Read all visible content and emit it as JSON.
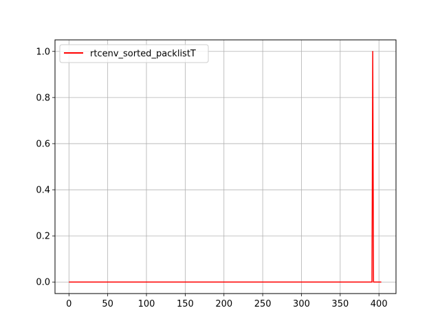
{
  "chart_data": {
    "type": "line",
    "title": "",
    "xlabel": "",
    "ylabel": "",
    "xlim": [
      -18,
      422
    ],
    "ylim": [
      -0.05,
      1.05
    ],
    "x_ticks": [
      0,
      50,
      100,
      150,
      200,
      250,
      300,
      350,
      400
    ],
    "x_tick_labels": [
      "0",
      "50",
      "100",
      "150",
      "200",
      "250",
      "300",
      "350",
      "400"
    ],
    "y_ticks": [
      0.0,
      0.2,
      0.4,
      0.6,
      0.8,
      1.0
    ],
    "y_tick_labels": [
      "0.0",
      "0.2",
      "0.4",
      "0.6",
      "0.8",
      "1.0"
    ],
    "grid": true,
    "legend_location": "upper left",
    "series": [
      {
        "name": "rtcenv_sorted_packlistT",
        "color": "#ff0000",
        "x": [
          0,
          391,
          392,
          393,
          394,
          403
        ],
        "y": [
          0,
          0,
          1,
          0,
          0,
          0
        ]
      }
    ]
  }
}
